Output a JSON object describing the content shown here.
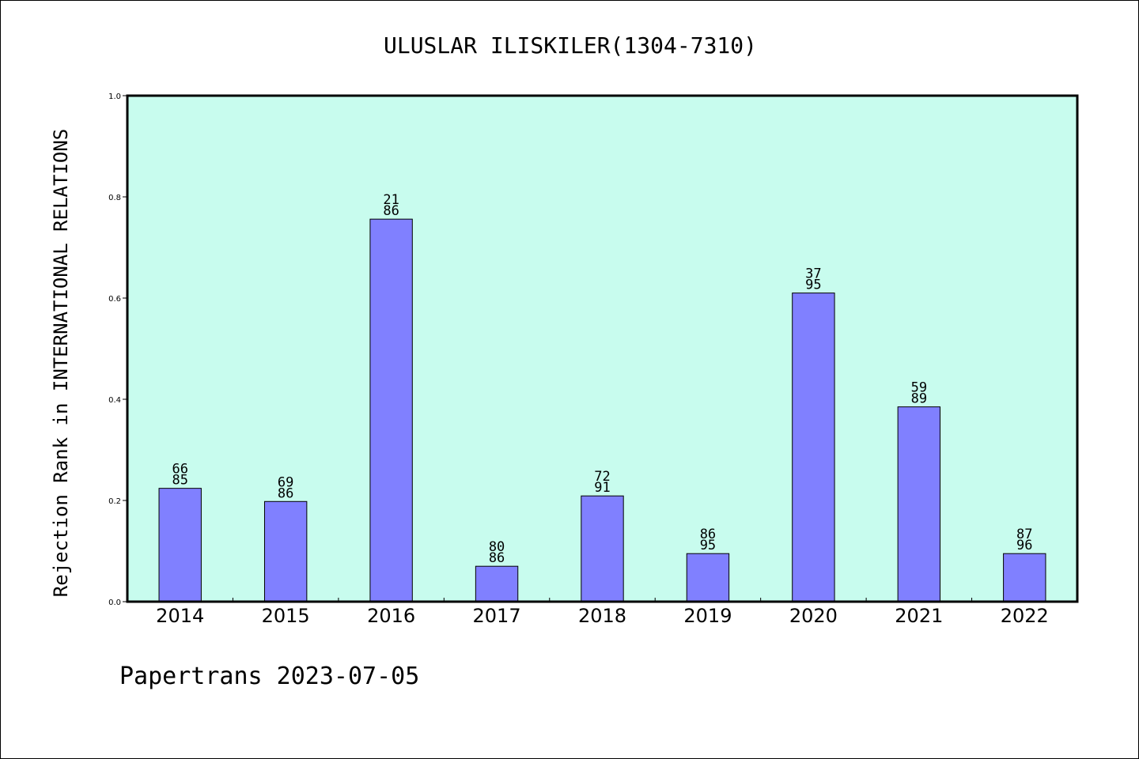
{
  "chart_data": {
    "type": "bar",
    "title": "ULUSLAR ILISKILER(1304-7310)",
    "xlabel": "",
    "ylabel": "Rejection Rank in INTERNATIONAL RELATIONS",
    "categories": [
      "2014",
      "2015",
      "2016",
      "2017",
      "2018",
      "2019",
      "2020",
      "2021",
      "2022"
    ],
    "values": [
      0.224,
      0.198,
      0.756,
      0.07,
      0.209,
      0.095,
      0.61,
      0.385,
      0.095
    ],
    "bar_labels": [
      [
        "66",
        "85"
      ],
      [
        "69",
        "86"
      ],
      [
        "21",
        "86"
      ],
      [
        "80",
        "86"
      ],
      [
        "72",
        "91"
      ],
      [
        "86",
        "95"
      ],
      [
        "37",
        "95"
      ],
      [
        "59",
        "89"
      ],
      [
        "87",
        "96"
      ]
    ],
    "yticks": [
      "0.0",
      "0.2",
      "0.4",
      "0.6",
      "0.8",
      "1.0"
    ],
    "ylim": [
      0,
      1
    ],
    "grid": false,
    "colors": {
      "plot_background": "#c8fcee",
      "bar_fill": "#8080ff",
      "bar_stroke": "#000000"
    }
  },
  "footer": {
    "text": "Papertrans 2023-07-05"
  }
}
